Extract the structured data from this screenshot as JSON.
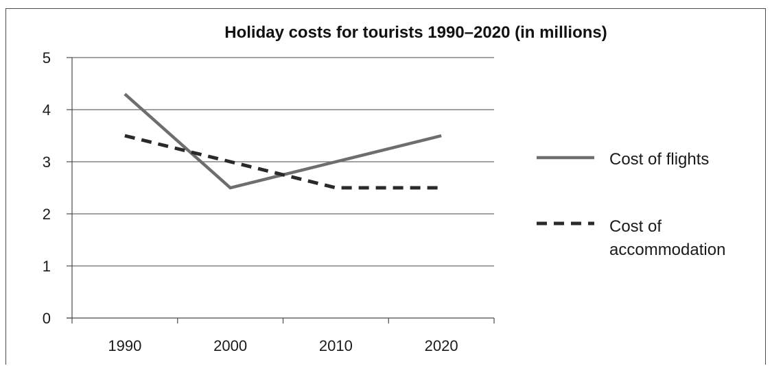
{
  "chart_data": {
    "type": "line",
    "title": "Holiday costs for tourists 1990–2020 (in millions)",
    "xlabel": "",
    "ylabel": "",
    "categories": [
      "1990",
      "2000",
      "2010",
      "2020"
    ],
    "ylim": [
      0,
      5
    ],
    "yticks": [
      "0",
      "1",
      "2",
      "3",
      "4",
      "5"
    ],
    "grid": true,
    "legend_position": "right",
    "series": [
      {
        "name": "Cost of flights",
        "values": [
          4.3,
          2.5,
          3.0,
          3.5
        ],
        "color": "#6e6e6e",
        "style": "solid"
      },
      {
        "name": "Cost of accommodation",
        "name_lines": [
          "Cost of",
          "accommodation"
        ],
        "values": [
          3.5,
          3.0,
          2.5,
          2.5
        ],
        "color": "#2a2a2a",
        "style": "dashed"
      }
    ]
  }
}
